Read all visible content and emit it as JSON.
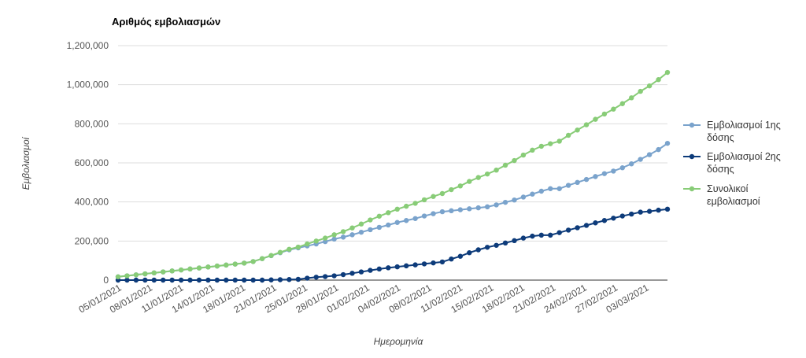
{
  "chart_data": {
    "type": "line",
    "title": "Αριθμός εμβολιασμών",
    "xlabel": "Ημερομηνία",
    "ylabel": "Εμβολιασμοί",
    "ylim": [
      0,
      1200000
    ],
    "yticks": [
      "0",
      "200,000",
      "400,000",
      "600,000",
      "800,000",
      "1,000,000",
      "1,200,000"
    ],
    "xtick_labels": [
      "05/01/2021",
      "08/01/2021",
      "11/01/2021",
      "14/01/2021",
      "18/01/2021",
      "21/01/2021",
      "25/01/2021",
      "28/01/2021",
      "01/02/2021",
      "04/02/2021",
      "08/02/2021",
      "11/02/2021",
      "15/02/2021",
      "18/02/2021",
      "21/02/2021",
      "24/02/2021",
      "27/02/2021",
      "03/03/2021"
    ],
    "grid": true,
    "legend_position": "right",
    "series": [
      {
        "name": "Εμβολιασμοί 1ης δόσης",
        "name_lines": [
          "Εμβολιασμοί 1ης",
          "δόσης"
        ],
        "color": "#7aa3cc",
        "values": [
          17000,
          22000,
          27000,
          32000,
          37000,
          42000,
          47000,
          52000,
          57000,
          62000,
          67000,
          72000,
          77000,
          82000,
          87000,
          95000,
          110000,
          125000,
          140000,
          155000,
          165000,
          175000,
          185000,
          197000,
          210000,
          220000,
          232000,
          245000,
          258000,
          270000,
          282000,
          295000,
          305000,
          315000,
          328000,
          340000,
          350000,
          355000,
          360000,
          365000,
          370000,
          375000,
          385000,
          398000,
          410000,
          425000,
          440000,
          455000,
          468000,
          468000,
          485000,
          500000,
          515000,
          530000,
          545000,
          558000,
          575000,
          595000,
          618000,
          642000,
          668000,
          700000
        ]
      },
      {
        "name": "Εμβολιασμοί 2ης δόσης",
        "name_lines": [
          "Εμβολιασμοί 2ης",
          "δόσης"
        ],
        "color": "#0d3b7a",
        "values": [
          0,
          0,
          0,
          0,
          0,
          0,
          0,
          0,
          0,
          0,
          0,
          0,
          0,
          0,
          0,
          0,
          0,
          1000,
          2000,
          3000,
          4000,
          10000,
          15000,
          18000,
          22000,
          28000,
          35000,
          42000,
          50000,
          57000,
          63000,
          68000,
          73000,
          78000,
          83000,
          88000,
          93000,
          108000,
          122000,
          140000,
          155000,
          168000,
          178000,
          190000,
          202000,
          215000,
          225000,
          230000,
          230000,
          243000,
          256000,
          268000,
          280000,
          293000,
          305000,
          317000,
          328000,
          338000,
          348000,
          352000,
          358000,
          363000
        ]
      },
      {
        "name": "Συνολικοί εμβολιασμοί",
        "name_lines": [
          "Συνολικοί",
          "εμβολιασμοί"
        ],
        "color": "#88cc77",
        "values": [
          17000,
          22000,
          27000,
          32000,
          37000,
          42000,
          47000,
          52000,
          57000,
          62000,
          67000,
          72000,
          77000,
          82000,
          87000,
          95000,
          110000,
          126000,
          142000,
          158000,
          169000,
          185000,
          200000,
          215000,
          232000,
          248000,
          267000,
          287000,
          308000,
          327000,
          345000,
          363000,
          378000,
          393000,
          411000,
          428000,
          443000,
          463000,
          482000,
          505000,
          525000,
          543000,
          563000,
          588000,
          612000,
          640000,
          665000,
          685000,
          698000,
          711000,
          741000,
          768000,
          795000,
          823000,
          850000,
          875000,
          903000,
          933000,
          966000,
          994000,
          1026000,
          1063000
        ]
      }
    ]
  }
}
